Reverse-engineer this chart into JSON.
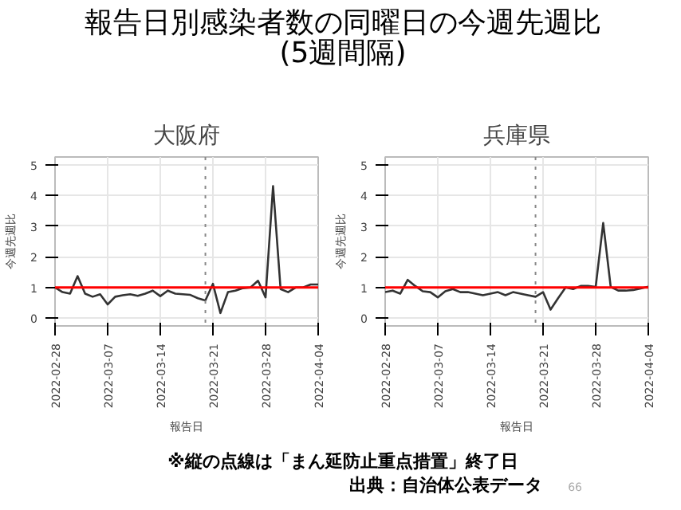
{
  "chart_data": [
    {
      "type": "line",
      "title": "大阪府",
      "xlabel": "報告日",
      "ylabel": "今週先週比",
      "annotations": [
        "報告日別感染者数の同曜日の今週先週比",
        "(5週間隔)"
      ],
      "x": [
        "2022-02-28",
        "2022-03-01",
        "2022-03-02",
        "2022-03-03",
        "2022-03-04",
        "2022-03-05",
        "2022-03-06",
        "2022-03-07",
        "2022-03-08",
        "2022-03-09",
        "2022-03-10",
        "2022-03-11",
        "2022-03-12",
        "2022-03-13",
        "2022-03-14",
        "2022-03-15",
        "2022-03-16",
        "2022-03-17",
        "2022-03-18",
        "2022-03-19",
        "2022-03-20",
        "2022-03-21",
        "2022-03-22",
        "2022-03-23",
        "2022-03-24",
        "2022-03-25",
        "2022-03-26",
        "2022-03-27",
        "2022-03-28",
        "2022-03-29",
        "2022-03-30",
        "2022-03-31",
        "2022-04-01",
        "2022-04-02",
        "2022-04-03",
        "2022-04-04"
      ],
      "series": [
        {
          "color": "#333333",
          "values": [
            1.0,
            0.85,
            0.8,
            1.37,
            0.8,
            0.7,
            0.78,
            0.45,
            0.7,
            0.75,
            0.78,
            0.73,
            0.8,
            0.9,
            0.72,
            0.9,
            0.8,
            0.78,
            0.76,
            0.65,
            0.58,
            1.12,
            0.17,
            0.85,
            0.9,
            0.98,
            1.0,
            1.22,
            0.68,
            4.3,
            0.95,
            0.85,
            1.0,
            1.0,
            1.1,
            1.1
          ]
        }
      ],
      "xlim": [
        "2022-02-28",
        "2022-04-04"
      ],
      "xticks": [
        "2022-02-28",
        "2022-03-07",
        "2022-03-14",
        "2022-03-21",
        "2022-03-28",
        "2022-04-04"
      ],
      "ylim": [
        -0.25,
        5.25
      ],
      "yticks": [
        0,
        1,
        2,
        3,
        4,
        5
      ],
      "grid": true,
      "line_style": "solid",
      "ref_lines": [
        {
          "axis": "y",
          "value": 1,
          "color": "#ff0000",
          "line_style": "solid"
        },
        {
          "axis": "x",
          "value": "2022-03-20",
          "color": "#888888",
          "line_style": "dotted"
        }
      ]
    },
    {
      "type": "line",
      "title": "兵庫県",
      "xlabel": "報告日",
      "ylabel": "今週先週比",
      "annotations": [
        "※縦の点線は「まん延防止重点措置」終了日",
        "出典：自治体公表データ",
        "66"
      ],
      "x": [
        "2022-02-28",
        "2022-03-01",
        "2022-03-02",
        "2022-03-03",
        "2022-03-04",
        "2022-03-05",
        "2022-03-06",
        "2022-03-07",
        "2022-03-08",
        "2022-03-09",
        "2022-03-10",
        "2022-03-11",
        "2022-03-12",
        "2022-03-13",
        "2022-03-14",
        "2022-03-15",
        "2022-03-16",
        "2022-03-17",
        "2022-03-18",
        "2022-03-19",
        "2022-03-20",
        "2022-03-21",
        "2022-03-22",
        "2022-03-23",
        "2022-03-24",
        "2022-03-25",
        "2022-03-26",
        "2022-03-27",
        "2022-03-28",
        "2022-03-29",
        "2022-03-30",
        "2022-03-31",
        "2022-04-01",
        "2022-04-02",
        "2022-04-03",
        "2022-04-04"
      ],
      "series": [
        {
          "color": "#333333",
          "values": [
            0.85,
            0.9,
            0.8,
            1.25,
            1.05,
            0.88,
            0.85,
            0.68,
            0.88,
            0.95,
            0.85,
            0.85,
            0.8,
            0.75,
            0.8,
            0.85,
            0.75,
            0.85,
            0.8,
            0.75,
            0.7,
            0.85,
            0.28,
            0.65,
            1.0,
            0.95,
            1.05,
            1.05,
            1.02,
            3.1,
            1.02,
            0.9,
            0.9,
            0.92,
            0.97,
            1.03
          ]
        }
      ],
      "xlim": [
        "2022-02-28",
        "2022-04-04"
      ],
      "xticks": [
        "2022-02-28",
        "2022-03-07",
        "2022-03-14",
        "2022-03-21",
        "2022-03-28",
        "2022-04-04"
      ],
      "ylim": [
        -0.25,
        5.25
      ],
      "yticks": [
        0,
        1,
        2,
        3,
        4,
        5
      ],
      "grid": true,
      "line_style": "solid",
      "ref_lines": [
        {
          "axis": "y",
          "value": 1,
          "color": "#ff0000",
          "line_style": "solid"
        },
        {
          "axis": "x",
          "value": "2022-03-20",
          "color": "#888888",
          "line_style": "dotted"
        }
      ]
    }
  ]
}
